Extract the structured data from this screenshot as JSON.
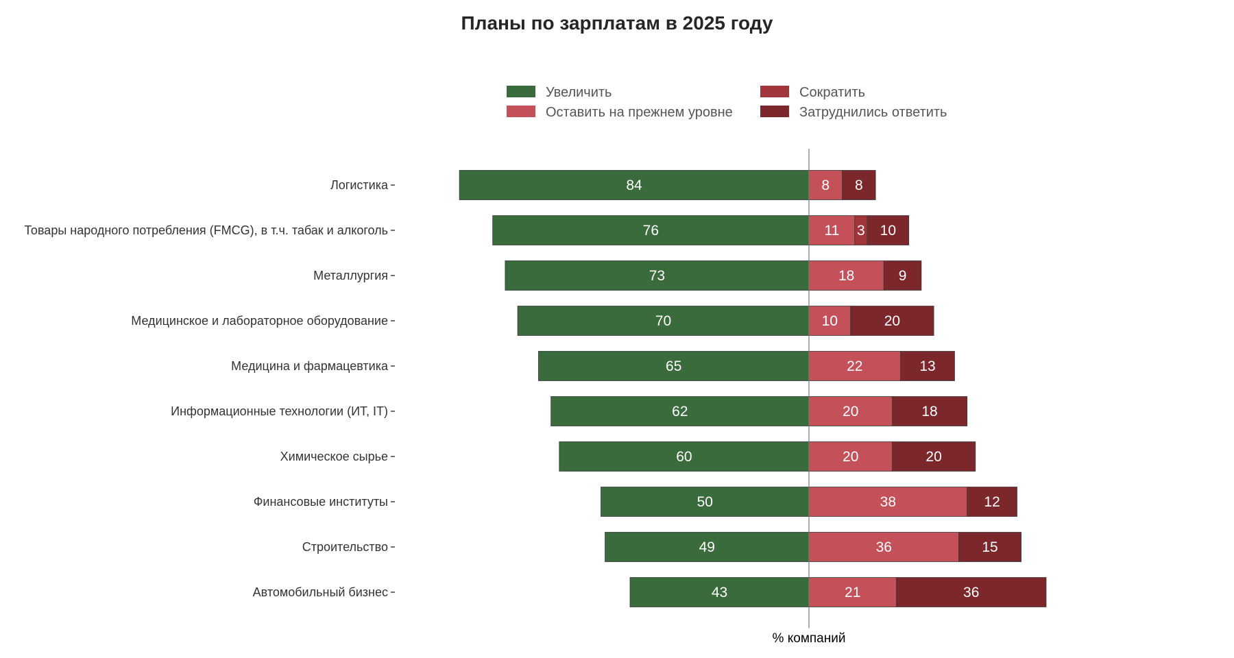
{
  "chart_data": {
    "type": "bar",
    "orientation": "horizontal-diverging",
    "title": "Планы по зарплатам в 2025 году",
    "xlabel": "% компаний",
    "ylabel": "",
    "legend_position": "top-center",
    "categories": [
      "Логистика",
      "Товары народного потребления (FMCG), в т.ч. табак и алкоголь",
      "Металлургия",
      "Медицинское и лабораторное оборудование",
      "Медицина и фармацевтика",
      "Информационные технологии (ИТ, IT)",
      "Химическое сырье",
      "Финансовые институты",
      "Строительство",
      "Автомобильный бизнес"
    ],
    "series": [
      {
        "name": "Увеличить",
        "color": "#3a6b3c",
        "side": "left",
        "values": [
          84,
          76,
          73,
          70,
          65,
          62,
          60,
          50,
          49,
          43
        ]
      },
      {
        "name": "Оставить на прежнем уровне",
        "color": "#c4505a",
        "side": "right",
        "values": [
          8,
          11,
          18,
          10,
          22,
          20,
          20,
          38,
          36,
          21
        ]
      },
      {
        "name": "Сократить",
        "color": "#a0353c",
        "side": "right",
        "values": [
          0,
          3,
          0,
          0,
          0,
          0,
          0,
          0,
          0,
          0
        ]
      },
      {
        "name": "Затруднились ответить",
        "color": "#7b272b",
        "side": "right",
        "values": [
          8,
          10,
          9,
          20,
          13,
          18,
          20,
          12,
          15,
          36
        ]
      }
    ],
    "legend_order": [
      0,
      2,
      1,
      3
    ],
    "xlim": [
      -84,
      57
    ]
  }
}
